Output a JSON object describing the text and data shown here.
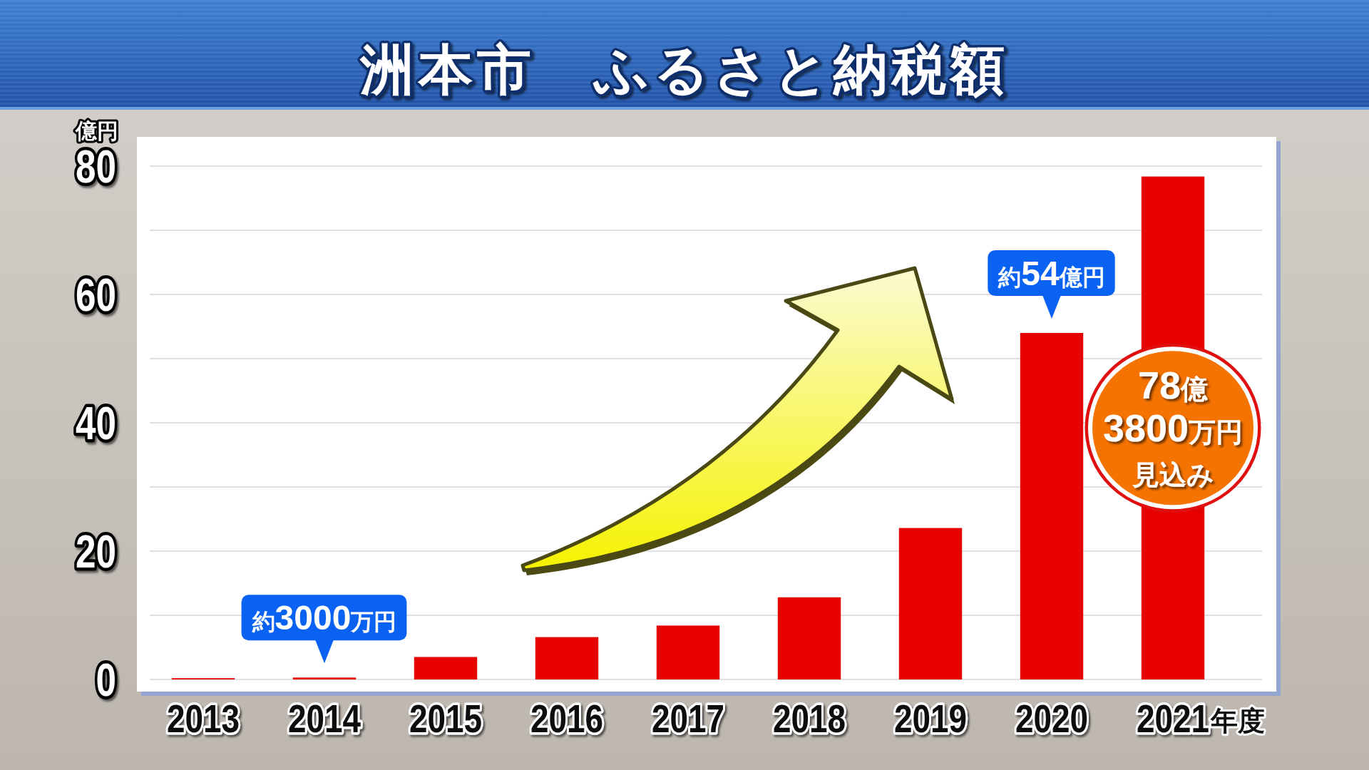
{
  "chart_data": {
    "type": "bar",
    "title": "洲本市　ふるさと納税額",
    "ylabel": "億円",
    "xlabel": "年度",
    "categories": [
      "2013",
      "2014",
      "2015",
      "2016",
      "2017",
      "2018",
      "2019",
      "2020",
      "2021"
    ],
    "values": [
      0.2,
      0.3,
      3.5,
      6.6,
      8.4,
      12.8,
      23.6,
      54,
      78.38
    ],
    "value_labels": [
      null,
      "約3000万円",
      null,
      null,
      null,
      null,
      null,
      "約54億円",
      "78億3800万円見込み"
    ],
    "color": "#e60000",
    "ylim": [
      0,
      80
    ],
    "yticks": [
      0,
      {
        "value": 10,
        "label": null
      },
      20,
      {
        "value": 30,
        "label": null
      },
      40,
      {
        "value": 50,
        "label": null
      },
      60,
      {
        "value": 70,
        "label": null
      },
      80
    ],
    "grid": "y"
  }
}
